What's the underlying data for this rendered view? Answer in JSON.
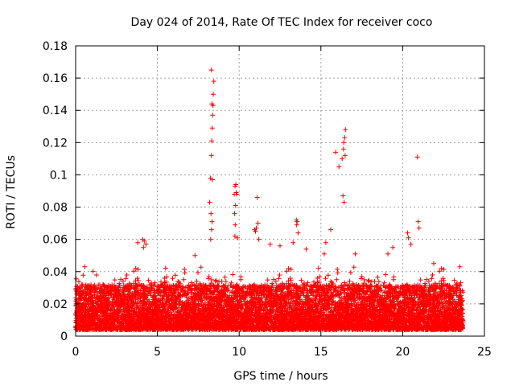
{
  "colors": {
    "series": "#ff0000",
    "background": "#ffffff",
    "axis": "#000000",
    "grid": "#a0a0a0"
  },
  "chart_data": {
    "type": "scatter",
    "title": "Day 024 of 2014, Rate Of TEC Index for receiver coco",
    "xlabel": "GPS time / hours",
    "ylabel": "ROTI / TECUs",
    "xlim": [
      0,
      25
    ],
    "ylim": [
      0,
      0.18
    ],
    "xticks": [
      0,
      5,
      10,
      15,
      20,
      25
    ],
    "xtick_labels": [
      "0",
      "5",
      "10",
      "15",
      "20",
      "25"
    ],
    "yticks": [
      0,
      0.02,
      0.04,
      0.06,
      0.08,
      0.1,
      0.12,
      0.14,
      0.16,
      0.18
    ],
    "ytick_labels": [
      "0",
      "0.02",
      "0.04",
      "0.06",
      "0.08",
      "0.1",
      "0.12",
      "0.14",
      "0.16",
      "0.18"
    ],
    "grid": true,
    "marker": "+",
    "series": [
      {
        "name": "ROTI",
        "x": [
          8.2,
          8.25,
          8.3,
          8.32,
          8.35,
          8.38,
          8.4,
          8.42,
          8.45,
          8.3,
          8.33,
          8.36,
          8.28,
          8.34,
          8.31,
          8.26,
          9.7,
          9.75,
          9.8,
          9.82,
          9.85,
          9.78,
          9.72,
          9.76,
          9.9,
          9.74,
          11.1,
          11.15,
          11.05,
          11.0,
          10.95,
          11.2,
          13.5,
          13.55,
          13.6,
          13.52,
          15.3,
          15.6,
          15.9,
          16.1,
          16.3,
          16.4,
          16.45,
          16.5,
          16.35,
          16.42,
          16.48,
          16.38,
          20.3,
          20.35,
          20.9,
          20.95,
          21.0,
          4.1,
          4.2,
          4.3,
          4.15,
          3.8,
          7.3,
          11.9,
          12.5,
          13.3,
          14.1,
          15.2,
          17.1,
          19.1,
          19.4,
          20.5,
          21.9,
          23.5
        ],
        "y": [
          0.083,
          0.098,
          0.112,
          0.121,
          0.129,
          0.137,
          0.143,
          0.15,
          0.158,
          0.165,
          0.144,
          0.097,
          0.076,
          0.071,
          0.066,
          0.06,
          0.088,
          0.093,
          0.094,
          0.089,
          0.088,
          0.081,
          0.076,
          0.069,
          0.061,
          0.062,
          0.086,
          0.07,
          0.067,
          0.065,
          0.066,
          0.06,
          0.072,
          0.071,
          0.064,
          0.069,
          0.058,
          0.066,
          0.114,
          0.105,
          0.11,
          0.12,
          0.123,
          0.128,
          0.087,
          0.083,
          0.112,
          0.116,
          0.064,
          0.061,
          0.111,
          0.071,
          0.067,
          0.06,
          0.059,
          0.057,
          0.055,
          0.058,
          0.05,
          0.057,
          0.056,
          0.058,
          0.054,
          0.051,
          0.051,
          0.051,
          0.055,
          0.057,
          0.045,
          0.043
        ]
      }
    ],
    "dense_band": "thousands of additional samples densely distributed from about 0.005 to 0.04 across 0–23.7 hours"
  }
}
